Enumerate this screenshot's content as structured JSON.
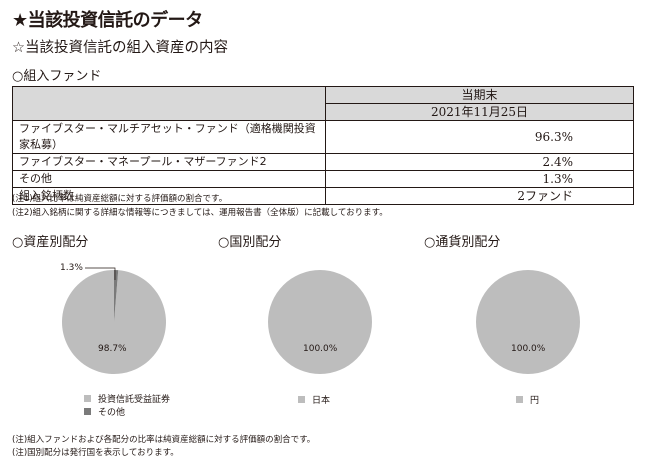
{
  "header": {
    "title": "★当該投資信託のデータ",
    "subtitle": "☆当該投資信託の組入資産の内容",
    "fund_section": "○組入ファンド"
  },
  "table": {
    "period_label": "当期末",
    "date_label": "2021年11月25日",
    "rows": [
      {
        "name": "ファイブスター・マルチアセット・ファンド（適格機関投資家私募）",
        "value": "96.3%"
      },
      {
        "name": "ファイブスター・マネープール・マザーファンド2",
        "value": "2.4%"
      },
      {
        "name": "その他",
        "value": "1.3%"
      },
      {
        "name": "組入銘柄数",
        "value": "2ファンド"
      }
    ]
  },
  "notes_top": [
    "(注1)組入比率は純資産総額に対する評価額の割合です。",
    "(注2)組入銘柄に関する詳細な情報等につきましては、運用報告書（全体版）に記載しております。"
  ],
  "chart_data": [
    {
      "type": "pie",
      "title": "○資産別配分",
      "labels": [
        "投資信託受益証券",
        "その他"
      ],
      "values": [
        98.7,
        1.3
      ],
      "value_labels": [
        "98.7%",
        "1.3%"
      ],
      "colors": [
        "#bdbdbd",
        "#7a7a7a"
      ]
    },
    {
      "type": "pie",
      "title": "○国別配分",
      "labels": [
        "日本"
      ],
      "values": [
        100.0
      ],
      "value_labels": [
        "100.0%"
      ],
      "colors": [
        "#bdbdbd"
      ]
    },
    {
      "type": "pie",
      "title": "○通貨別配分",
      "labels": [
        "円"
      ],
      "values": [
        100.0
      ],
      "value_labels": [
        "100.0%"
      ],
      "colors": [
        "#bdbdbd"
      ]
    }
  ],
  "notes_bottom": [
    "(注)組入ファンドおよび各配分の比率は純資産総額に対する評価額の割合です。",
    "(注)国別配分は発行国を表示しております。"
  ]
}
